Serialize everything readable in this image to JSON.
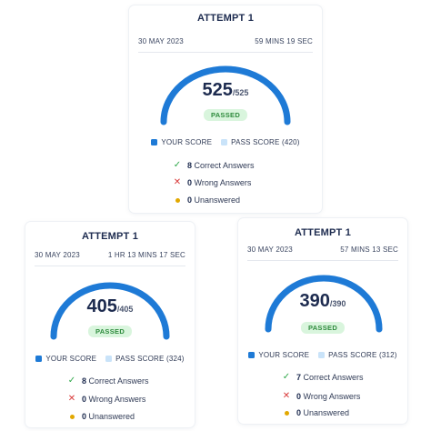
{
  "cards": [
    {
      "title": "ATTEMPT 1",
      "date": "30 MAY 2023",
      "duration": "59 MINS 19 SEC",
      "score": "525",
      "total": "/525",
      "fill": 1.0,
      "status": "PASSED",
      "legend_your": "YOUR SCORE",
      "legend_pass": "PASS SCORE (420)",
      "correct_num": "8",
      "correct_label": "Correct Answers",
      "wrong_num": "0",
      "wrong_label": "Wrong Answers",
      "unanswered_num": "0",
      "unanswered_label": "Unanswered"
    },
    {
      "title": "ATTEMPT 1",
      "date": "30 MAY 2023",
      "duration": "1 HR 13 MINS 17 SEC",
      "score": "405",
      "total": "/405",
      "fill": 1.0,
      "status": "PASSED",
      "legend_your": "YOUR SCORE",
      "legend_pass": "PASS SCORE (324)",
      "correct_num": "8",
      "correct_label": "Correct Answers",
      "wrong_num": "0",
      "wrong_label": "Wrong Answers",
      "unanswered_num": "0",
      "unanswered_label": "Unanswered"
    },
    {
      "title": "ATTEMPT 1",
      "date": "30 MAY 2023",
      "duration": "57 MINS 13 SEC",
      "score": "390",
      "total": "/390",
      "fill": 1.0,
      "status": "PASSED",
      "legend_your": "YOUR SCORE",
      "legend_pass": "PASS SCORE (312)",
      "correct_num": "7",
      "correct_label": "Correct Answers",
      "wrong_num": "0",
      "wrong_label": "Wrong Answers",
      "unanswered_num": "0",
      "unanswered_label": "Unanswered"
    }
  ],
  "colors": {
    "gauge_fill": "#1e7ad6",
    "gauge_track": "#c9e3f9",
    "pass_green": "#2e8b3d",
    "check_green": "#2ea84a",
    "wrong_red": "#d93a3a",
    "unanswered_yellow": "#e2a800"
  },
  "icons": {
    "correct": "check-icon",
    "wrong": "x-icon",
    "unanswered": "dot-icon"
  }
}
